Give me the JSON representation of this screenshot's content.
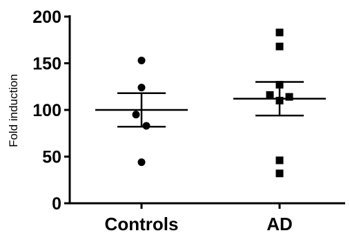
{
  "chart_data": {
    "type": "scatter",
    "title": "",
    "xlabel": "",
    "ylabel": "Fold induction",
    "categories": [
      "Controls",
      "AD"
    ],
    "ylim": [
      0,
      200
    ],
    "yticks": [
      0,
      50,
      100,
      150,
      200
    ],
    "grid": false,
    "legend": "none",
    "series": [
      {
        "category": "Controls",
        "marker": "circle",
        "values": [
          153,
          124,
          95,
          83,
          44
        ],
        "mean": 100,
        "error_upper": 118,
        "error_lower": 82
      },
      {
        "category": "AD",
        "marker": "square",
        "values": [
          183,
          168,
          127,
          116,
          110,
          114,
          46,
          32
        ],
        "mean": 112,
        "error_upper": 130,
        "error_lower": 94
      }
    ],
    "colors": {
      "marker": "#000000",
      "axis": "#000000"
    }
  }
}
